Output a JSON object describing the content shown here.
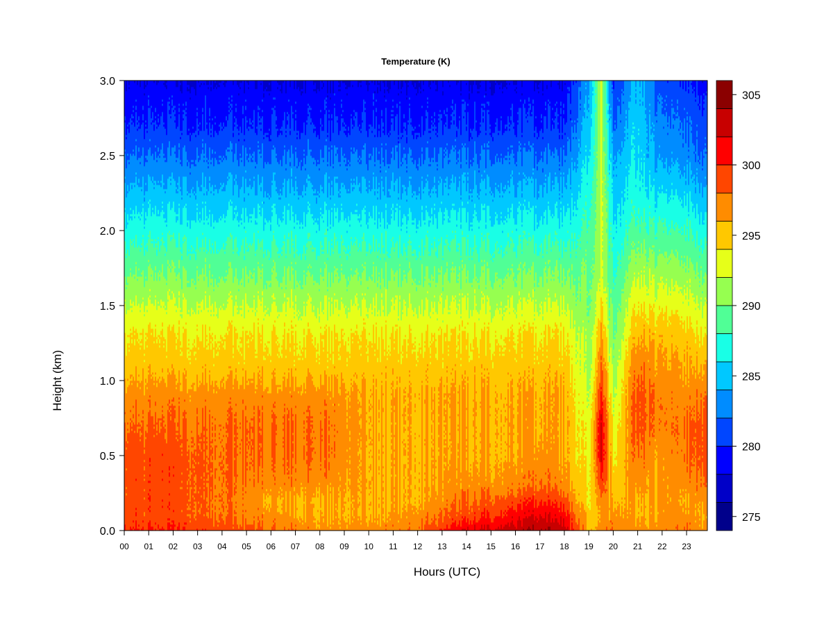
{
  "chart_data": {
    "type": "heatmap",
    "title": "Temperature (K)",
    "xlabel": "Hours (UTC)",
    "ylabel": "Height (km)",
    "x_unit": "hour",
    "xlim": [
      0,
      23.85
    ],
    "ylim": [
      0,
      3.0
    ],
    "x_ticks": [
      "00",
      "01",
      "02",
      "03",
      "04",
      "05",
      "06",
      "07",
      "08",
      "09",
      "10",
      "11",
      "12",
      "13",
      "14",
      "15",
      "16",
      "17",
      "18",
      "19",
      "20",
      "21",
      "22",
      "23"
    ],
    "y_ticks": [
      "0.0",
      "0.5",
      "1.0",
      "1.5",
      "2.0",
      "2.5",
      "3.0"
    ],
    "colorbar": {
      "label": "",
      "range": [
        274,
        306
      ],
      "step": 2,
      "ticks": [
        "275",
        "280",
        "285",
        "290",
        "295",
        "300",
        "305"
      ],
      "colors": [
        "#00008b",
        "#0000c8",
        "#0000ff",
        "#0046ff",
        "#008cff",
        "#00c8ff",
        "#19ffe6",
        "#50ff96",
        "#96ff50",
        "#e6ff19",
        "#ffc800",
        "#ff8c00",
        "#ff4600",
        "#ff0000",
        "#c80000",
        "#8b0000"
      ]
    },
    "profile_heights_km": [
      0.0,
      0.1,
      0.2,
      0.3,
      0.5,
      0.7,
      0.9,
      1.1,
      1.3,
      1.5,
      1.7,
      1.9,
      2.1,
      2.3,
      2.5,
      2.7,
      2.9,
      3.0
    ],
    "profiles_K": [
      {
        "hour": 0,
        "values": [
          300,
          299,
          299,
          299,
          299,
          298,
          297,
          295,
          294,
          292,
          290,
          288,
          286,
          284,
          282,
          280,
          279,
          278
        ]
      },
      {
        "hour": 2,
        "values": [
          300,
          299,
          299,
          299,
          299,
          298,
          297,
          295,
          294,
          292,
          290,
          288,
          286,
          284,
          282,
          280,
          279,
          278
        ]
      },
      {
        "hour": 4,
        "values": [
          299,
          298,
          298,
          298,
          298,
          298,
          297,
          295,
          294,
          292,
          290,
          288,
          286,
          284,
          282,
          280,
          279,
          278
        ]
      },
      {
        "hour": 6,
        "values": [
          298,
          297,
          296,
          297,
          298,
          298,
          297,
          295,
          294,
          292,
          290,
          288,
          286,
          284,
          282,
          280,
          279,
          278
        ]
      },
      {
        "hour": 8,
        "values": [
          297,
          296,
          296,
          297,
          298,
          298,
          297,
          295,
          294,
          292,
          290,
          288,
          286,
          284,
          282,
          280,
          279,
          278
        ]
      },
      {
        "hour": 10,
        "values": [
          297,
          296,
          296,
          296,
          296,
          296,
          296,
          295,
          294,
          292,
          290,
          288,
          286,
          284,
          282,
          280,
          279,
          278
        ]
      },
      {
        "hour": 12,
        "values": [
          298,
          297,
          296,
          296,
          296,
          296,
          296,
          295,
          294,
          292,
          290,
          288,
          286,
          284,
          282,
          280,
          279,
          278
        ]
      },
      {
        "hour": 14,
        "values": [
          302,
          299,
          298,
          297,
          296,
          296,
          296,
          295,
          294,
          292,
          290,
          288,
          286,
          284,
          282,
          280,
          279,
          278
        ]
      },
      {
        "hour": 16,
        "values": [
          303,
          301,
          299,
          297,
          296,
          296,
          296,
          295,
          294,
          292,
          290,
          288,
          286,
          284,
          282,
          280,
          279,
          278
        ]
      },
      {
        "hour": 17,
        "values": [
          304,
          302,
          300,
          298,
          297,
          296,
          296,
          295,
          294,
          292,
          290,
          288,
          286,
          284,
          282,
          280,
          279,
          278
        ]
      },
      {
        "hour": 18,
        "values": [
          303,
          301,
          299,
          297,
          296,
          296,
          296,
          295,
          294,
          292,
          290,
          288,
          286,
          284,
          282,
          280,
          279,
          278
        ]
      },
      {
        "hour": 19,
        "values": [
          296,
          295,
          294,
          294,
          293,
          293,
          292,
          291,
          291,
          290,
          290,
          289,
          288,
          287,
          286,
          285,
          284,
          284
        ]
      },
      {
        "hour": 19.5,
        "values": [
          297,
          296,
          297,
          299,
          302,
          302,
          300,
          298,
          296,
          294,
          292,
          292,
          292,
          292,
          292,
          292,
          292,
          292
        ]
      },
      {
        "hour": 20,
        "values": [
          298,
          297,
          296,
          295,
          294,
          293,
          292,
          291,
          290,
          289,
          288,
          287,
          286,
          285,
          284,
          282,
          281,
          280
        ]
      },
      {
        "hour": 21,
        "values": [
          297,
          296,
          296,
          297,
          298,
          299,
          299,
          298,
          296,
          294,
          292,
          290,
          288,
          287,
          286,
          286,
          285,
          285
        ]
      },
      {
        "hour": 22,
        "values": [
          297,
          296,
          296,
          296,
          296,
          297,
          297,
          296,
          295,
          293,
          291,
          289,
          287,
          285,
          283,
          282,
          281,
          280
        ]
      },
      {
        "hour": 23,
        "values": [
          298,
          297,
          296,
          297,
          298,
          298,
          297,
          296,
          295,
          293,
          291,
          289,
          287,
          285,
          283,
          282,
          281,
          280
        ]
      },
      {
        "hour": 23.7,
        "values": [
          297,
          296,
          297,
          298,
          299,
          299,
          298,
          296,
          294,
          292,
          290,
          288,
          286,
          284,
          282,
          281,
          280,
          279
        ]
      }
    ]
  }
}
